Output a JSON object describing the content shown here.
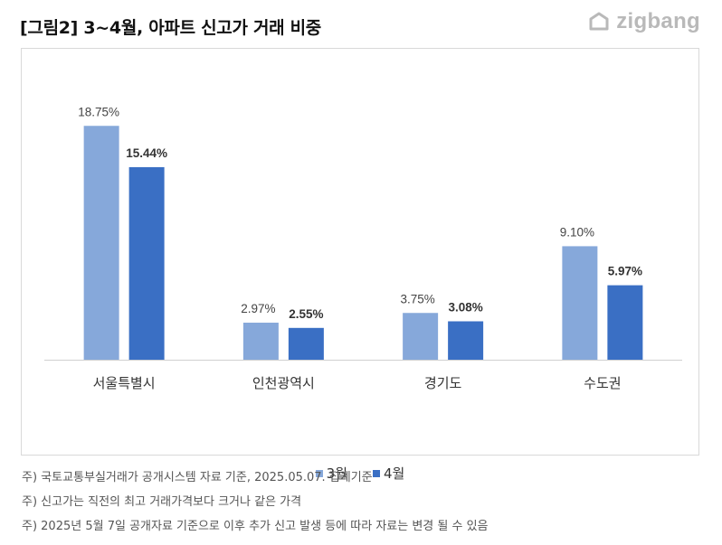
{
  "title": "[그림2] 3~4월, 아파트 신고가 거래 비중",
  "logo_text": "zigbang",
  "colors": {
    "march": "#86A8DA",
    "april": "#3A6FC4",
    "axis": "#d0d0d0"
  },
  "chart_data": {
    "type": "bar",
    "title": "",
    "xlabel": "",
    "ylabel": "",
    "categories": [
      "서울특별시",
      "인천광역시",
      "경기도",
      "수도권"
    ],
    "series": [
      {
        "name": "3월",
        "values": [
          18.75,
          2.97,
          3.75,
          9.1
        ],
        "labels": [
          "18.75%",
          "2.97%",
          "3.75%",
          "9.10%"
        ],
        "label_bold": false
      },
      {
        "name": "4월",
        "values": [
          15.44,
          2.55,
          3.08,
          5.97
        ],
        "labels": [
          "15.44%",
          "2.55%",
          "3.08%",
          "5.97%"
        ],
        "label_bold": true
      }
    ],
    "ylim": [
      0,
      20
    ],
    "grid": false,
    "legend": "bottom"
  },
  "notes": [
    "주) 국토교통부실거래가 공개시스템 자료 기준, 2025.05.07. 집계기준",
    "주) 신고가는 직전의 최고 거래가격보다 크거나 같은 가격",
    "주) 2025년 5월 7일 공개자료 기준으로 이후 추가 신고 발생 등에 따라 자료는 변경 될 수 있음"
  ]
}
